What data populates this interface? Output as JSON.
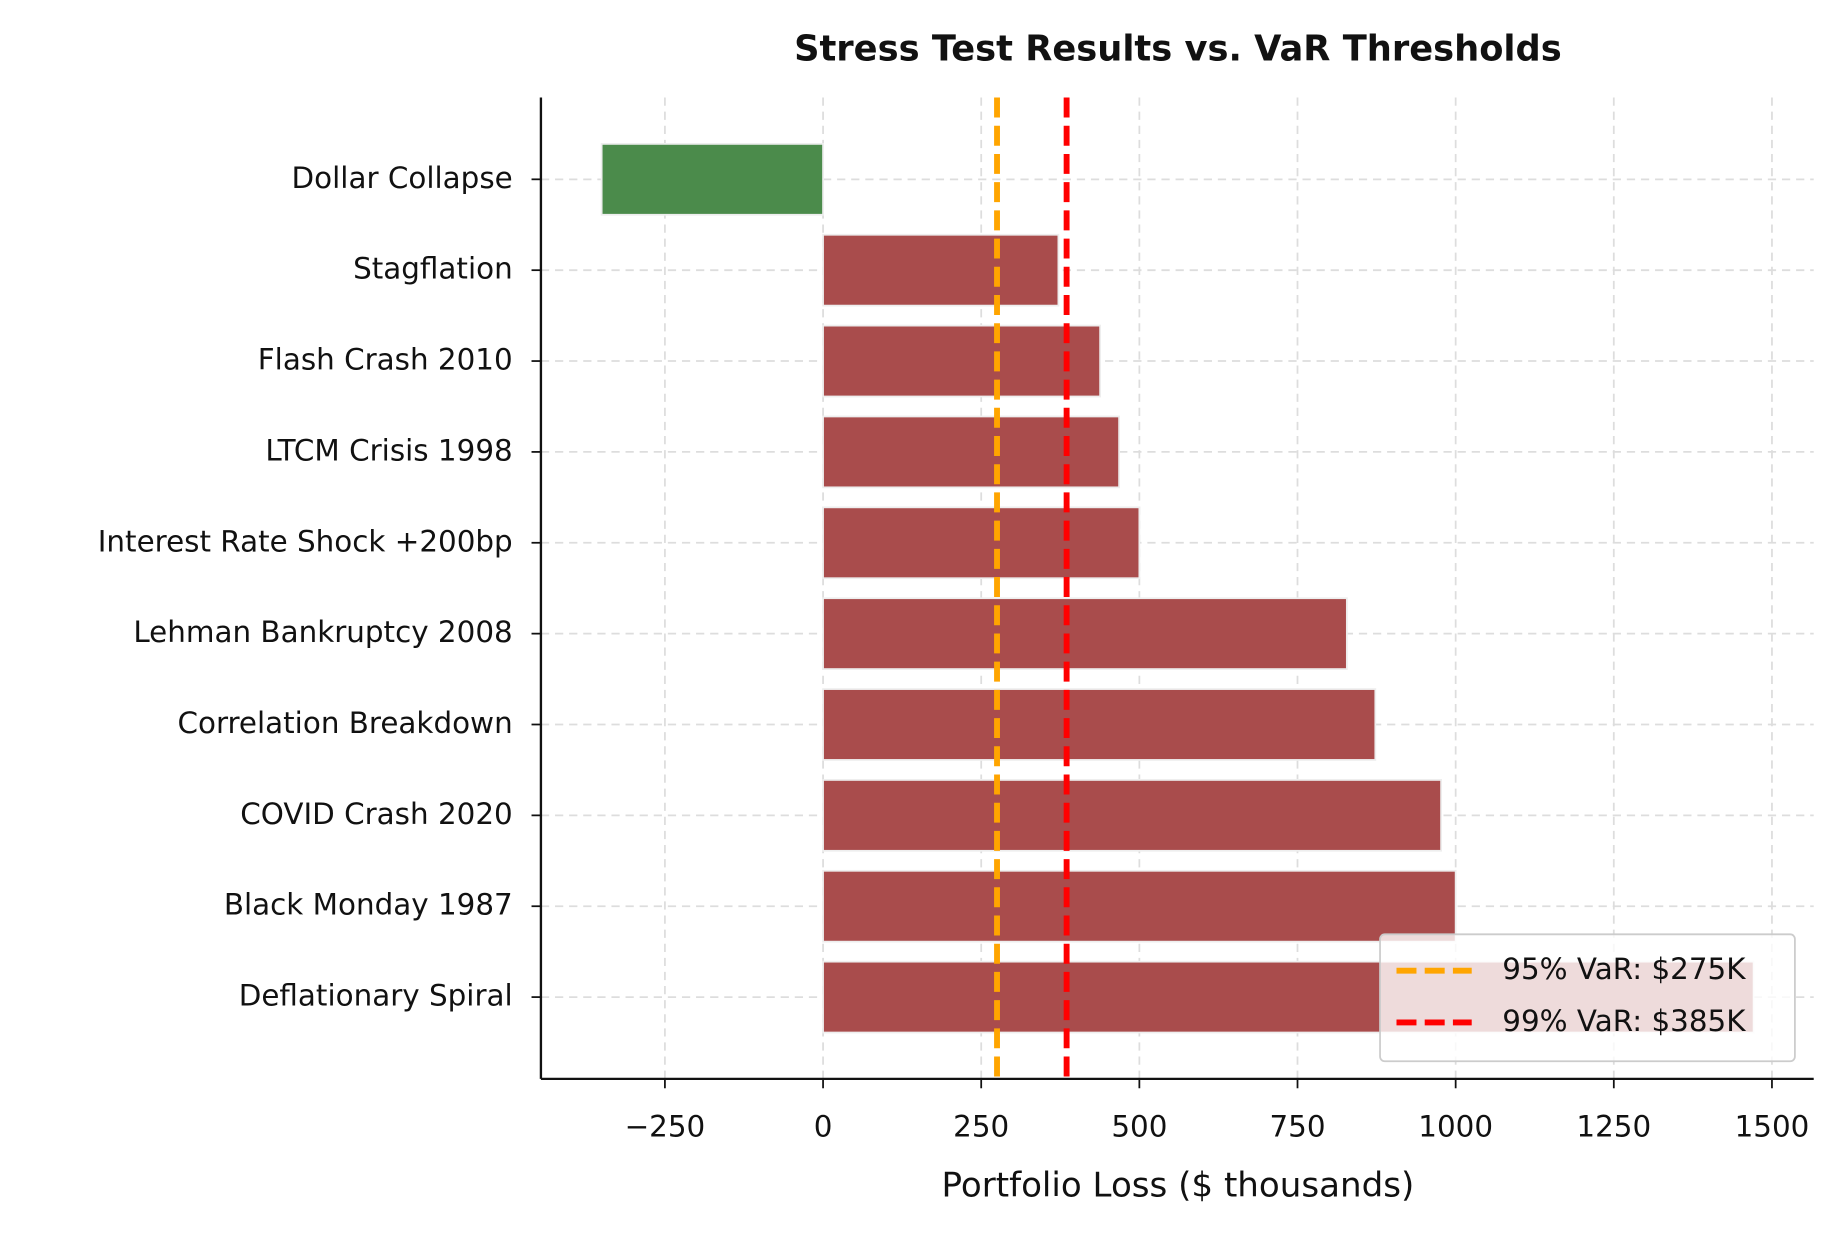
{
  "chart_data": {
    "type": "bar",
    "orientation": "horizontal",
    "title": "Stress Test Results vs. VaR Thresholds",
    "x_label": "Portfolio Loss ($ thousands)",
    "categories": [
      "Dollar Collapse",
      "Stagflation",
      "Flash Crash 2010",
      "LTCM Crisis 1998",
      "Interest Rate Shock +200bp",
      "Lehman Bankruptcy 2008",
      "Correlation Breakdown",
      "COVID Crash 2020",
      "Black Monday 1987",
      "Deflationary Spiral"
    ],
    "values": [
      -350,
      372,
      438,
      468,
      500,
      828,
      873,
      977,
      1000,
      1471
    ],
    "colors": [
      "#4b8b4b",
      "#a94c4c",
      "#a94c4c",
      "#a94c4c",
      "#a94c4c",
      "#a94c4c",
      "#a94c4c",
      "#a94c4c",
      "#a94c4c",
      "#a94c4c"
    ],
    "xlim": [
      -446,
      1566
    ],
    "xticks": [
      {
        "value": -250,
        "label": "−250"
      },
      0,
      250,
      500,
      750,
      1000,
      1250,
      1500
    ],
    "grid": true,
    "reference_lines": [
      {
        "name": "95% VaR: $275K",
        "value": 275,
        "color": "#ffa500"
      },
      {
        "name": "99% VaR: $385K",
        "value": 385,
        "color": "#ff0000"
      }
    ],
    "legend": "lower right"
  }
}
